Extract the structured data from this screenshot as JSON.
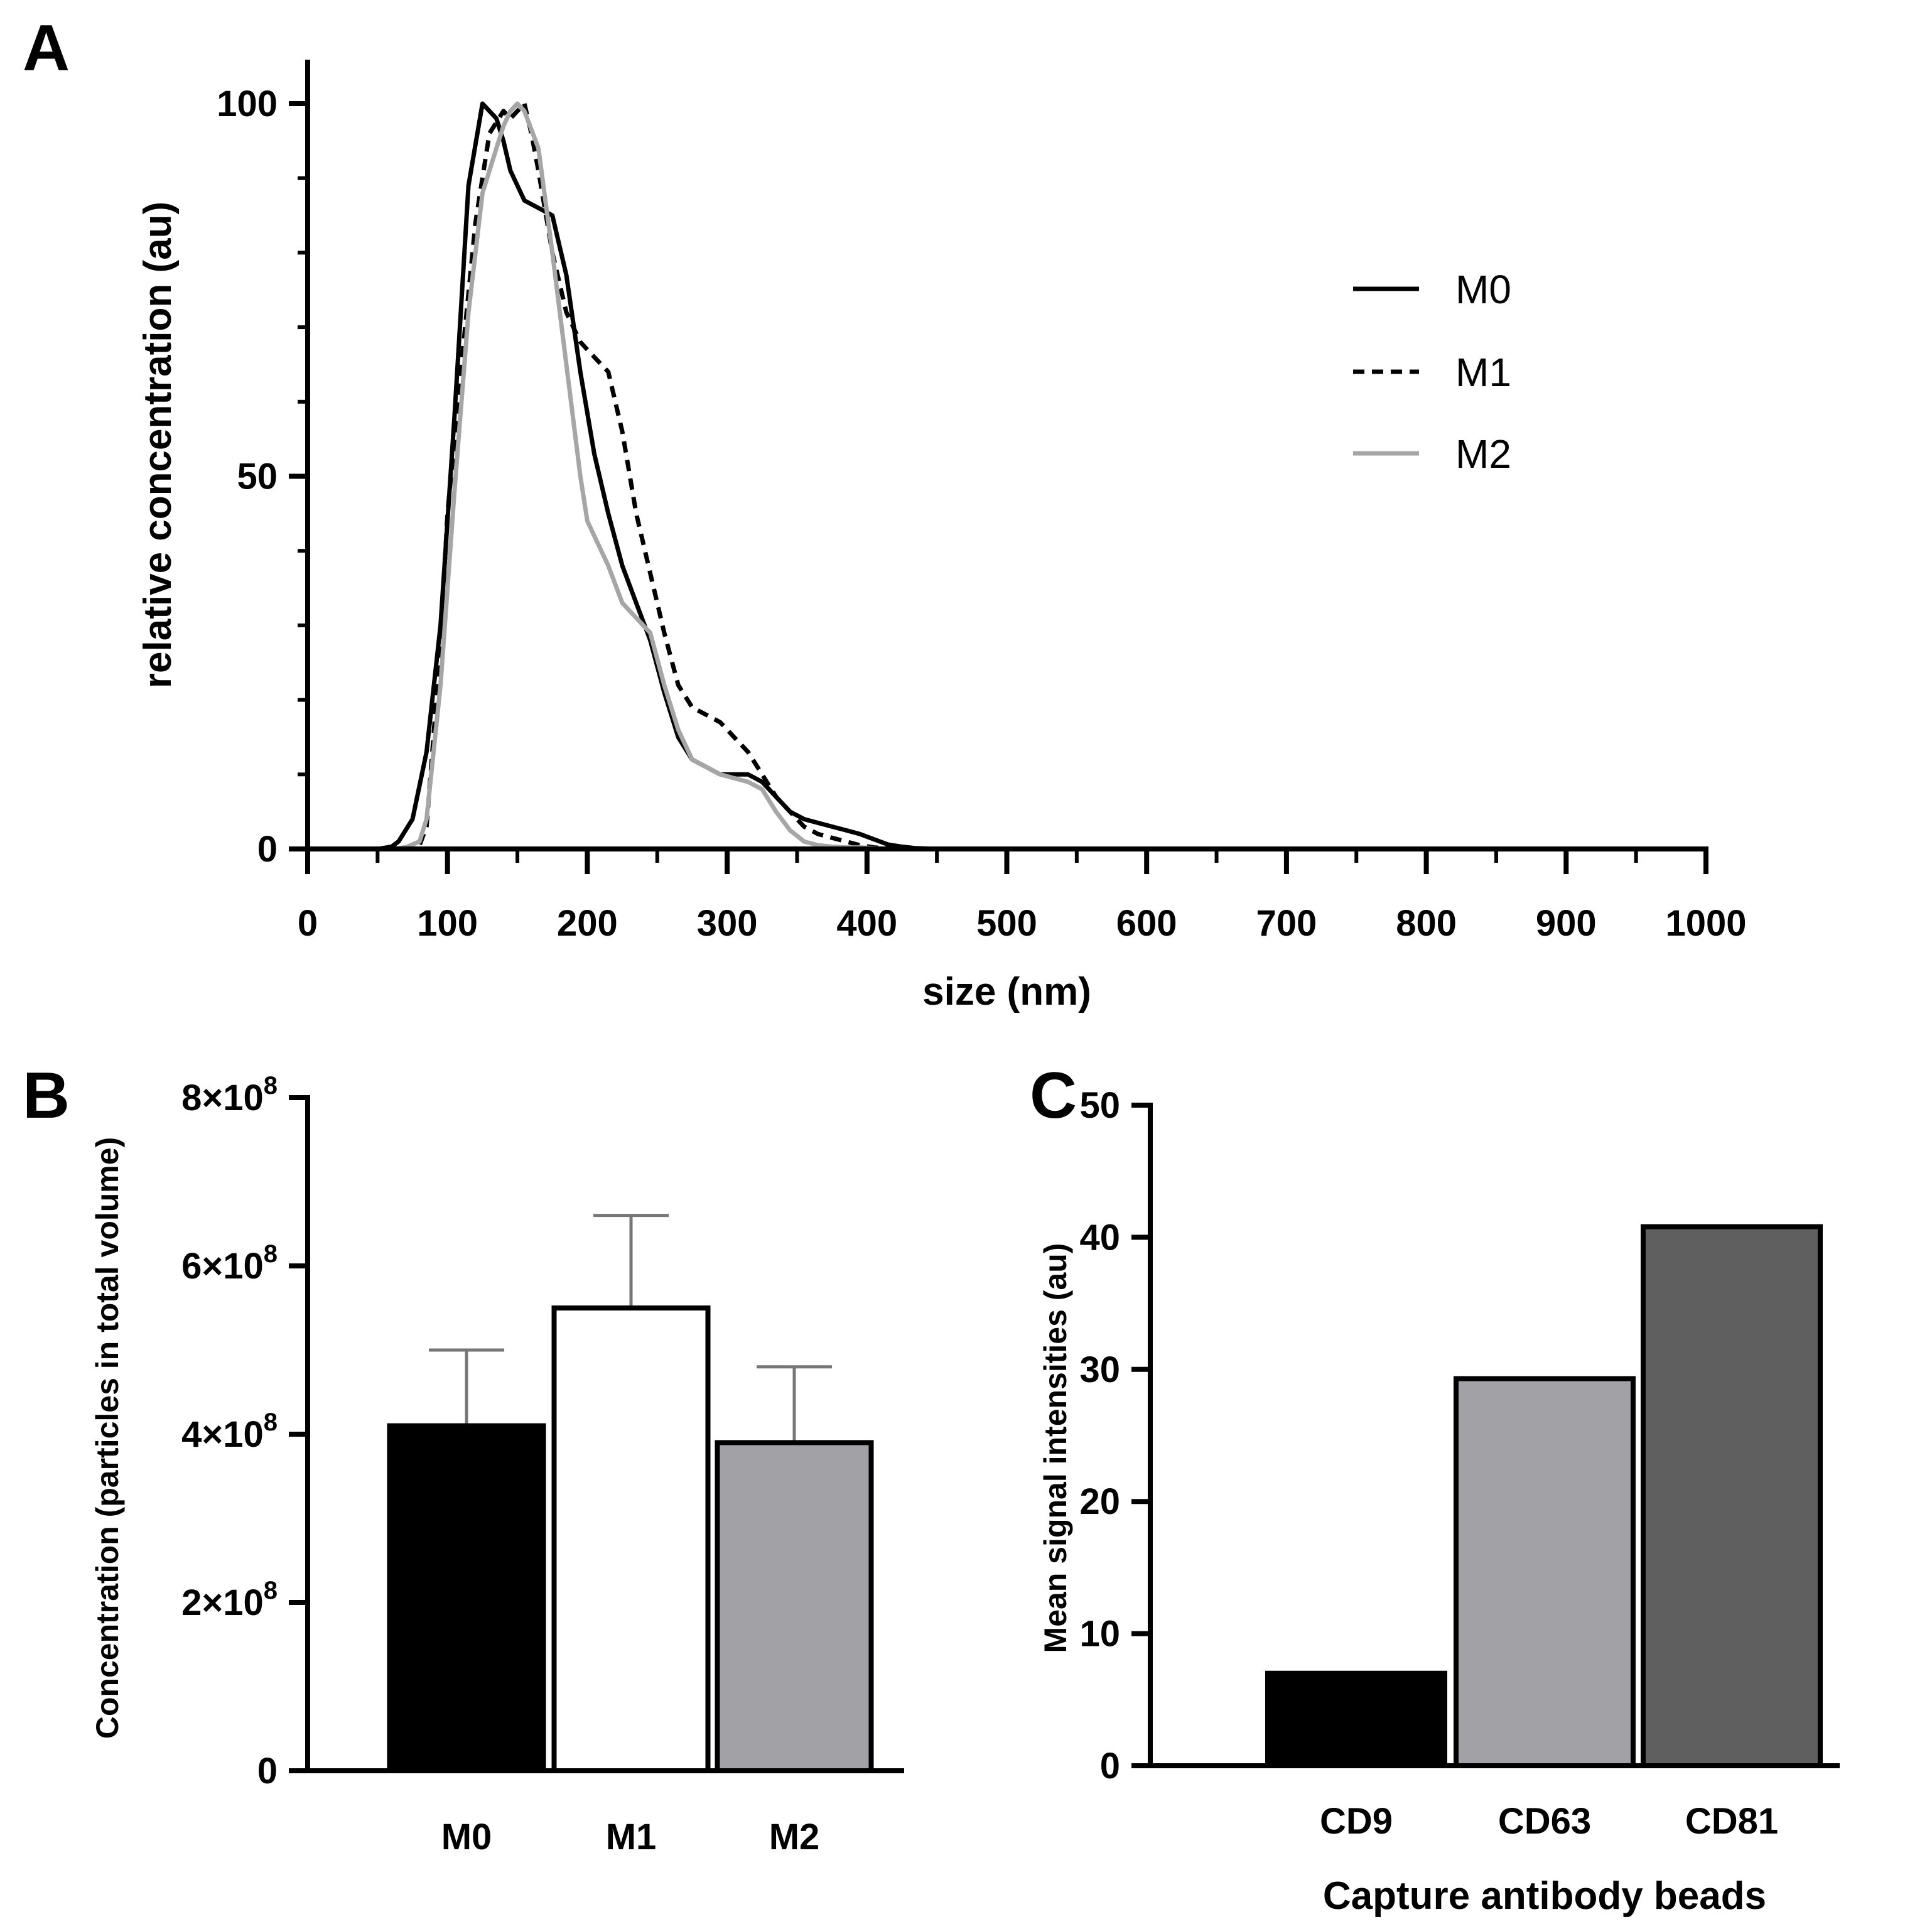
{
  "chart_data": [
    {
      "panel": "A",
      "type": "line",
      "title": "",
      "xlabel": "size (nm)",
      "ylabel": "relative concentration (au)",
      "xlim": [
        0,
        1000
      ],
      "ylim": [
        0,
        100
      ],
      "xticks": [
        "0",
        "100",
        "200",
        "300",
        "400",
        "500",
        "600",
        "700",
        "800",
        "900",
        "1000"
      ],
      "yticks": [
        "0",
        "50",
        "100"
      ],
      "legend": "top-right",
      "series": [
        {
          "name": "M0",
          "color": "#000000",
          "style": "solid",
          "x": [
            0,
            50,
            60,
            65,
            75,
            85,
            95,
            105,
            115,
            125,
            135,
            140,
            145,
            155,
            165,
            175,
            185,
            195,
            205,
            215,
            225,
            235,
            245,
            255,
            265,
            275,
            285,
            295,
            305,
            315,
            325,
            335,
            345,
            355,
            365,
            375,
            385,
            395,
            405,
            415,
            425,
            435,
            450,
            480,
            1000
          ],
          "y": [
            0,
            0,
            0.3,
            1,
            4,
            13,
            30,
            58,
            89,
            100,
            98,
            95,
            91,
            87,
            86,
            85,
            77,
            64,
            53,
            45,
            38,
            33,
            28,
            21,
            15,
            12,
            11,
            10,
            10,
            10,
            9,
            7,
            5,
            4,
            3.5,
            3,
            2.5,
            2,
            1.3,
            0.6,
            0.3,
            0.1,
            0,
            0,
            0
          ]
        },
        {
          "name": "M1",
          "color": "#000000",
          "style": "dashed",
          "x": [
            0,
            60,
            70,
            80,
            85,
            90,
            95,
            100,
            110,
            120,
            130,
            140,
            145,
            150,
            155,
            160,
            165,
            175,
            185,
            195,
            205,
            215,
            225,
            235,
            245,
            255,
            265,
            275,
            285,
            295,
            305,
            315,
            325,
            335,
            345,
            355,
            365,
            375,
            385,
            395,
            405,
            420,
            440,
            1000
          ],
          "y": [
            0,
            0,
            0.2,
            0.5,
            3,
            15,
            28,
            45,
            65,
            84,
            96,
            99,
            98,
            99,
            100,
            96,
            91,
            80,
            72,
            68,
            66,
            64,
            56,
            45,
            37,
            29,
            22,
            19,
            18,
            17,
            15,
            13,
            10,
            7,
            5,
            3,
            2,
            1.5,
            1,
            0.5,
            0.2,
            0,
            0,
            0
          ]
        },
        {
          "name": "M2",
          "color": "#a6a6a6",
          "style": "solid",
          "x": [
            0,
            60,
            70,
            80,
            85,
            95,
            105,
            115,
            125,
            135,
            140,
            145,
            150,
            155,
            165,
            175,
            185,
            195,
            200,
            205,
            215,
            225,
            235,
            245,
            255,
            265,
            275,
            285,
            295,
            305,
            315,
            325,
            335,
            345,
            355,
            365,
            375,
            385,
            395,
            405,
            415,
            430,
            460,
            1000
          ],
          "y": [
            0,
            0,
            0.2,
            1,
            4,
            22,
            48,
            72,
            88,
            94,
            97,
            99,
            100,
            99,
            94,
            80,
            65,
            50,
            44,
            42,
            38,
            33,
            31,
            29,
            22,
            16,
            12,
            11,
            10,
            9.5,
            9,
            8,
            5,
            2.5,
            1,
            0.5,
            0.3,
            0.2,
            0.2,
            0.1,
            0,
            0,
            0,
            0
          ]
        }
      ]
    },
    {
      "panel": "B",
      "type": "bar",
      "title": "",
      "xlabel": "",
      "ylabel": "Concentration (particles in total volume)",
      "categories": [
        "M0",
        "M1",
        "M2"
      ],
      "values": [
        410000000,
        550000000,
        390000000
      ],
      "error_upper": [
        500000000,
        660000000,
        480000000
      ],
      "colors": [
        "#000000",
        "#ffffff",
        "#a2a2a6"
      ],
      "ylim": [
        0,
        800000000
      ],
      "yticks": [
        {
          "value": 0,
          "mantissa": "0",
          "times": "",
          "base": "",
          "exp": ""
        },
        {
          "value": 200000000,
          "mantissa": "2",
          "times": "×",
          "base": "10",
          "exp": "8"
        },
        {
          "value": 400000000,
          "mantissa": "4",
          "times": "×",
          "base": "10",
          "exp": "8"
        },
        {
          "value": 600000000,
          "mantissa": "6",
          "times": "×",
          "base": "10",
          "exp": "8"
        },
        {
          "value": 800000000,
          "mantissa": "8",
          "times": "×",
          "base": "10",
          "exp": "8"
        }
      ]
    },
    {
      "panel": "C",
      "type": "bar",
      "title": "",
      "xlabel": "Capture antibody beads",
      "ylabel": "Mean signal intensities (au)",
      "categories": [
        "CD9",
        "CD63",
        "CD81"
      ],
      "values": [
        7,
        29.3,
        40.8
      ],
      "colors": [
        "#000000",
        "#a2a2a6",
        "#5f5f5f"
      ],
      "ylim": [
        0,
        50
      ],
      "yticks": [
        "0",
        "10",
        "20",
        "30",
        "40",
        "50"
      ]
    }
  ]
}
